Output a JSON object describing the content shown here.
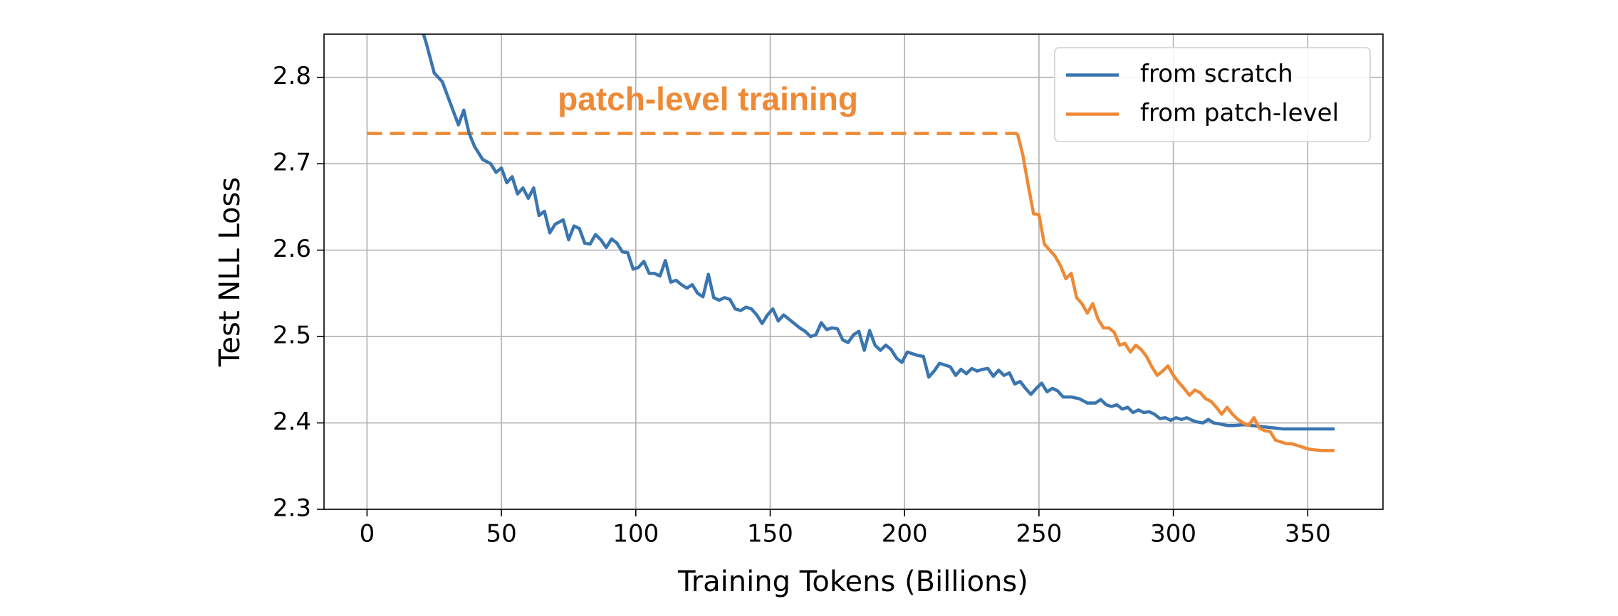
{
  "chart_data": {
    "type": "line",
    "x_label": "Training Tokens (Billions)",
    "y_label": "Test NLL Loss",
    "xlim": [
      -16,
      378
    ],
    "ylim": [
      2.3,
      2.85
    ],
    "xticks": [
      0,
      50,
      100,
      150,
      200,
      250,
      300,
      350
    ],
    "yticks": [
      2.3,
      2.4,
      2.5,
      2.6,
      2.7,
      2.8
    ],
    "grid": true,
    "legend": "upper right",
    "series": [
      {
        "name": "from scratch",
        "color": "#3a75af",
        "x": [
          20,
          22,
          25,
          28,
          31,
          34,
          36,
          38,
          40,
          43,
          46,
          48,
          50,
          52,
          54,
          56,
          58,
          60,
          62,
          64,
          66,
          68,
          70,
          73,
          75,
          77,
          79,
          81,
          83,
          85,
          87,
          89,
          91,
          93,
          95,
          97,
          99,
          101,
          103,
          105,
          107,
          109,
          111,
          113,
          115,
          117,
          119,
          121,
          123,
          125,
          127,
          129,
          131,
          133,
          135,
          137,
          139,
          141,
          143,
          145,
          147,
          149,
          151,
          153,
          155,
          157,
          159,
          161,
          163,
          165,
          167,
          169,
          171,
          173,
          175,
          177,
          179,
          181,
          183,
          185,
          187,
          189,
          191,
          193,
          195,
          197,
          199,
          201,
          203,
          205,
          207,
          209,
          211,
          213,
          215,
          217,
          219,
          221,
          223,
          225,
          227,
          229,
          231,
          233,
          235,
          237,
          239,
          241,
          243,
          245,
          247,
          249,
          251,
          253,
          255,
          257,
          259,
          262,
          265,
          268,
          271,
          273,
          275,
          277,
          279,
          281,
          283,
          285,
          287,
          289,
          291,
          293,
          295,
          297,
          299,
          301,
          303,
          305,
          307,
          309,
          311,
          313,
          315,
          317,
          320,
          323,
          326,
          329,
          332,
          335,
          338,
          341,
          345,
          350,
          355,
          360
        ],
        "values": [
          2.86,
          2.84,
          2.805,
          2.795,
          2.77,
          2.745,
          2.762,
          2.735,
          2.72,
          2.705,
          2.7,
          2.69,
          2.695,
          2.678,
          2.685,
          2.665,
          2.672,
          2.66,
          2.672,
          2.64,
          2.645,
          2.62,
          2.63,
          2.635,
          2.612,
          2.628,
          2.625,
          2.608,
          2.607,
          2.618,
          2.612,
          2.603,
          2.613,
          2.608,
          2.598,
          2.597,
          2.578,
          2.58,
          2.587,
          2.573,
          2.573,
          2.57,
          2.588,
          2.563,
          2.565,
          2.56,
          2.556,
          2.56,
          2.55,
          2.546,
          2.572,
          2.545,
          2.542,
          2.545,
          2.543,
          2.532,
          2.53,
          2.534,
          2.532,
          2.525,
          2.515,
          2.525,
          2.532,
          2.518,
          2.525,
          2.52,
          2.515,
          2.51,
          2.506,
          2.5,
          2.502,
          2.516,
          2.508,
          2.51,
          2.509,
          2.496,
          2.493,
          2.502,
          2.506,
          2.484,
          2.507,
          2.49,
          2.484,
          2.49,
          2.485,
          2.475,
          2.47,
          2.482,
          2.48,
          2.478,
          2.477,
          2.453,
          2.46,
          2.469,
          2.467,
          2.465,
          2.455,
          2.462,
          2.457,
          2.463,
          2.46,
          2.462,
          2.463,
          2.454,
          2.461,
          2.455,
          2.458,
          2.445,
          2.448,
          2.44,
          2.433,
          2.44,
          2.446,
          2.436,
          2.44,
          2.437,
          2.43,
          2.43,
          2.428,
          2.423,
          2.423,
          2.427,
          2.421,
          2.419,
          2.421,
          2.416,
          2.418,
          2.412,
          2.415,
          2.412,
          2.413,
          2.41,
          2.405,
          2.406,
          2.403,
          2.406,
          2.404,
          2.406,
          2.403,
          2.401,
          2.4,
          2.404,
          2.4,
          2.399,
          2.397,
          2.397,
          2.398,
          2.397,
          2.396,
          2.395,
          2.394,
          2.393,
          2.393,
          2.393,
          2.393,
          2.393
        ]
      },
      {
        "name": "from patch-level",
        "color": "#ee8a36",
        "x": [
          242,
          244,
          246,
          248,
          250,
          252,
          254,
          256,
          258,
          260,
          262,
          264,
          266,
          268,
          270,
          272,
          274,
          276,
          278,
          280,
          282,
          284,
          286,
          288,
          290,
          292,
          294,
          296,
          298,
          300,
          302,
          304,
          306,
          308,
          310,
          312,
          314,
          316,
          318,
          320,
          322,
          324,
          326,
          328,
          330,
          332,
          334,
          336,
          338,
          340,
          342,
          344,
          346,
          348,
          350,
          352,
          355,
          358,
          360
        ],
        "values": [
          2.735,
          2.71,
          2.675,
          2.642,
          2.641,
          2.607,
          2.6,
          2.593,
          2.582,
          2.567,
          2.573,
          2.545,
          2.538,
          2.527,
          2.538,
          2.52,
          2.51,
          2.51,
          2.505,
          2.49,
          2.492,
          2.482,
          2.49,
          2.485,
          2.477,
          2.465,
          2.455,
          2.46,
          2.466,
          2.455,
          2.447,
          2.44,
          2.432,
          2.438,
          2.435,
          2.428,
          2.425,
          2.418,
          2.41,
          2.418,
          2.41,
          2.404,
          2.4,
          2.397,
          2.406,
          2.394,
          2.391,
          2.39,
          2.38,
          2.378,
          2.376,
          2.376,
          2.374,
          2.372,
          2.37,
          2.369,
          2.368,
          2.368,
          2.368
        ]
      }
    ],
    "annotations": [
      {
        "text": "patch-level training",
        "color": "#ee8a36",
        "x": [
          0,
          242
        ],
        "y": 2.735
      }
    ]
  }
}
